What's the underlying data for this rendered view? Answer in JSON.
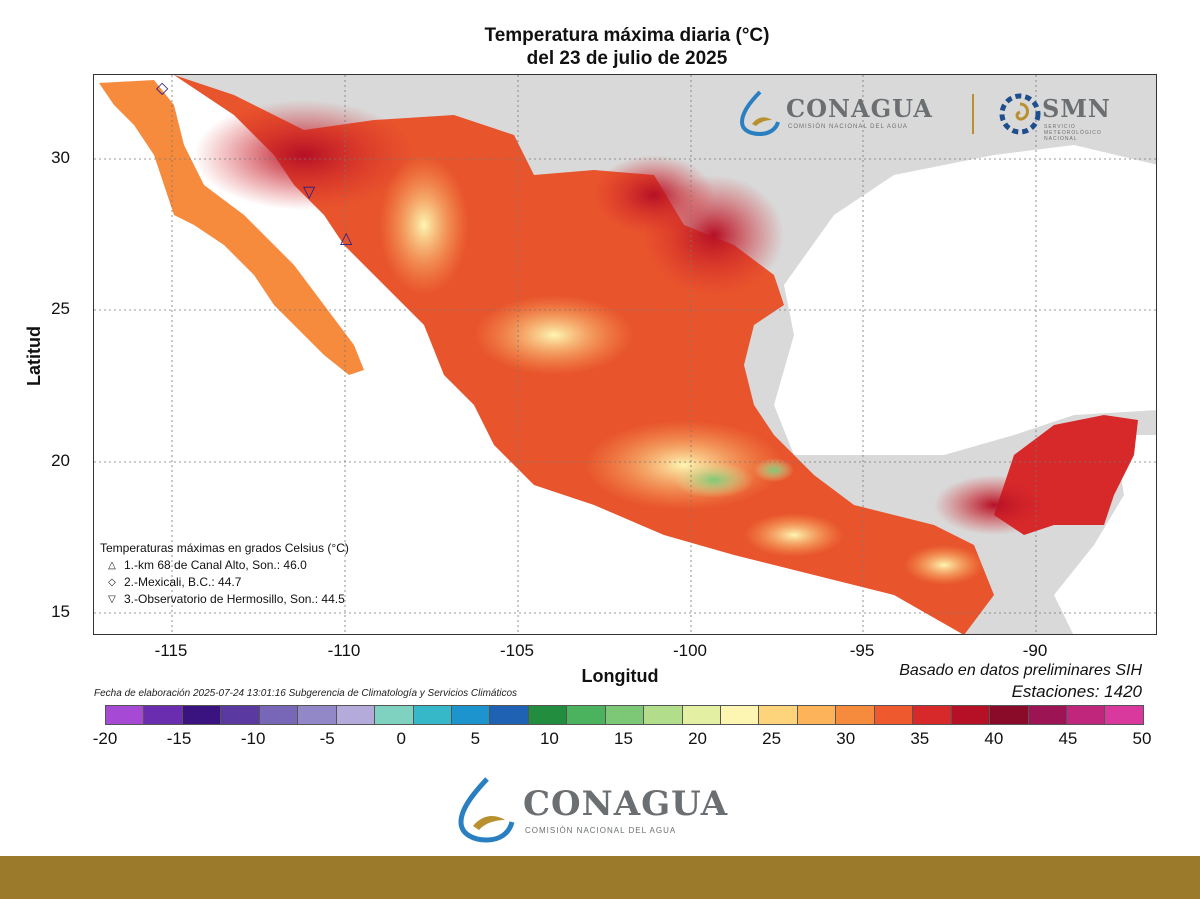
{
  "title": {
    "line1": "Temperatura máxima diaria (°C)",
    "line2": "del 23 de julio de 2025"
  },
  "axes": {
    "ylabel": "Latitud",
    "xlabel": "Longitud",
    "yticks": [
      "30",
      "25",
      "20",
      "15"
    ],
    "xticks": [
      "-115",
      "-110",
      "-105",
      "-100",
      "-95",
      "-90"
    ]
  },
  "basis": "Basado en datos preliminares SIH",
  "stations": "Estaciones: 1420",
  "footnote": "Fecha de elaboración 2025-07-24 13:01:16 Subgerencia de Climatología y Servicios Climáticos",
  "legend": {
    "title": "Temperaturas máximas en grados Celsius (°C)",
    "items": [
      {
        "symbol": "△",
        "text": "1.-km 68 de Canal Alto, Son.: 46.0",
        "value": 46.0
      },
      {
        "symbol": "◇",
        "text": "2.-Mexicali, B.C.: 44.7",
        "value": 44.7
      },
      {
        "symbol": "▽",
        "text": "3.-Observatorio de Hermosillo, Son.: 44.5",
        "value": 44.5
      }
    ]
  },
  "colorbar": {
    "labels": [
      "-20",
      "-15",
      "-10",
      "-5",
      "0",
      "5",
      "10",
      "15",
      "20",
      "25",
      "30",
      "35",
      "40",
      "45",
      "50"
    ],
    "colors": [
      "#a64ad6",
      "#6a2db0",
      "#3b1380",
      "#5a3aa0",
      "#7767b6",
      "#9288c8",
      "#b4abdb",
      "#7fd1c0",
      "#37b8c8",
      "#1e94cf",
      "#1f62b4",
      "#238d3f",
      "#4bb25d",
      "#7cc877",
      "#b2dd8a",
      "#e3efa3",
      "#fdf6b3",
      "#fdd47c",
      "#fcb35a",
      "#f68b3e",
      "#ee5a2e",
      "#d8292a",
      "#b51026",
      "#8a0a2a",
      "#9c1454",
      "#c0267c",
      "#d9389c"
    ]
  },
  "logos": {
    "header_left": "CONAGUA",
    "header_left_sub": "COMISIÓN NACIONAL DEL AGUA",
    "header_right": "SMN",
    "header_right_sub": "SERVICIO METEOROLÓGICO NACIONAL",
    "footer": "CONAGUA",
    "footer_sub": "COMISIÓN NACIONAL DEL AGUA"
  },
  "colors": {
    "land_hot": "#d8292a",
    "ocean": "#ffffff",
    "background_land": "#d9d9d9",
    "footer_bar": "#9b7a2c"
  }
}
